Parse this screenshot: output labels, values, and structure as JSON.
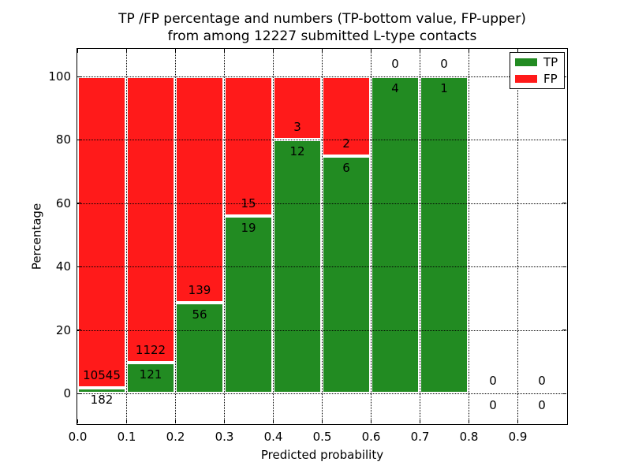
{
  "figure": {
    "title_line1": "TP /FP percentage and numbers (TP-bottom value, FP-upper)",
    "title_line2": "from among 12227 submitted L-type contacts",
    "xlabel": "Predicted probability",
    "ylabel": "Percentage"
  },
  "legend": {
    "items": [
      {
        "label": "TP",
        "color": "#228b22"
      },
      {
        "label": "FP",
        "color": "#ff1a1a"
      }
    ]
  },
  "chart_data": {
    "type": "bar",
    "stacked": true,
    "normalized_to_percent": true,
    "title": "TP /FP percentage and numbers (TP-bottom value, FP-upper)\nfrom among 12227 submitted L-type contacts",
    "xlabel": "Predicted probability",
    "ylabel": "Percentage",
    "total_submitted": 12227,
    "bins": [
      "0.0-0.1",
      "0.1-0.2",
      "0.2-0.3",
      "0.3-0.4",
      "0.4-0.5",
      "0.5-0.6",
      "0.6-0.7",
      "0.7-0.8",
      "0.8-0.9",
      "0.9-1.0"
    ],
    "x_tick_labels": [
      "0.0",
      "0.1",
      "0.2",
      "0.3",
      "0.4",
      "0.5",
      "0.6",
      "0.7",
      "0.8",
      "0.9"
    ],
    "y_ticks": [
      0,
      20,
      40,
      60,
      80,
      100
    ],
    "xlim": [
      0.0,
      1.0
    ],
    "ylim": [
      0,
      100
    ],
    "series": [
      {
        "name": "TP",
        "color": "#228b22",
        "counts": [
          182,
          121,
          56,
          19,
          12,
          6,
          4,
          1,
          0,
          0
        ]
      },
      {
        "name": "FP",
        "color": "#ff1a1a",
        "counts": [
          10545,
          1122,
          139,
          15,
          3,
          2,
          0,
          0,
          0,
          0
        ]
      }
    ],
    "tp_percent_of_bin": [
      1.7,
      9.73,
      28.72,
      55.88,
      80.0,
      75.0,
      100.0,
      100.0,
      null,
      null
    ],
    "legend_position": "upper right",
    "grid": "dotted",
    "bar_edge_color": "#ffffff"
  }
}
